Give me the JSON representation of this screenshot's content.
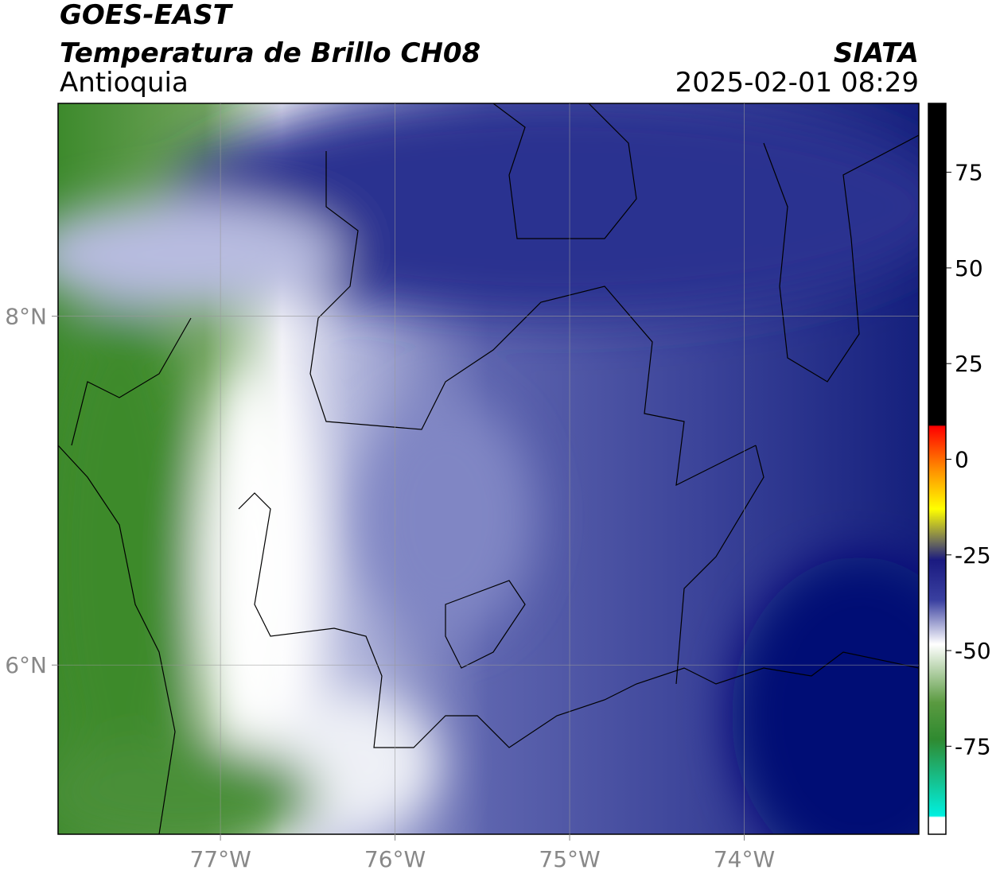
{
  "header": {
    "title": "GOES-EAST",
    "subtitle": "Temperatura de Brillo CH08",
    "region": "Antioquia",
    "source": "SIATA",
    "datetime": "2025-02-01 08:29"
  },
  "map": {
    "xlim": [
      -77.93,
      -73.0
    ],
    "ylim": [
      5.03,
      9.22
    ],
    "xticks": [
      {
        "value": -77,
        "label": "77°W"
      },
      {
        "value": -76,
        "label": "76°W"
      },
      {
        "value": -75,
        "label": "75°W"
      },
      {
        "value": -74,
        "label": "74°W"
      }
    ],
    "yticks": [
      {
        "value": 8,
        "label": "8°N"
      },
      {
        "value": 6,
        "label": "6°N"
      }
    ],
    "grid": true
  },
  "colorbar": {
    "lim": [
      -98,
      93
    ],
    "ticks": [
      75,
      50,
      25,
      0,
      -25,
      -50,
      -75
    ]
  }
}
